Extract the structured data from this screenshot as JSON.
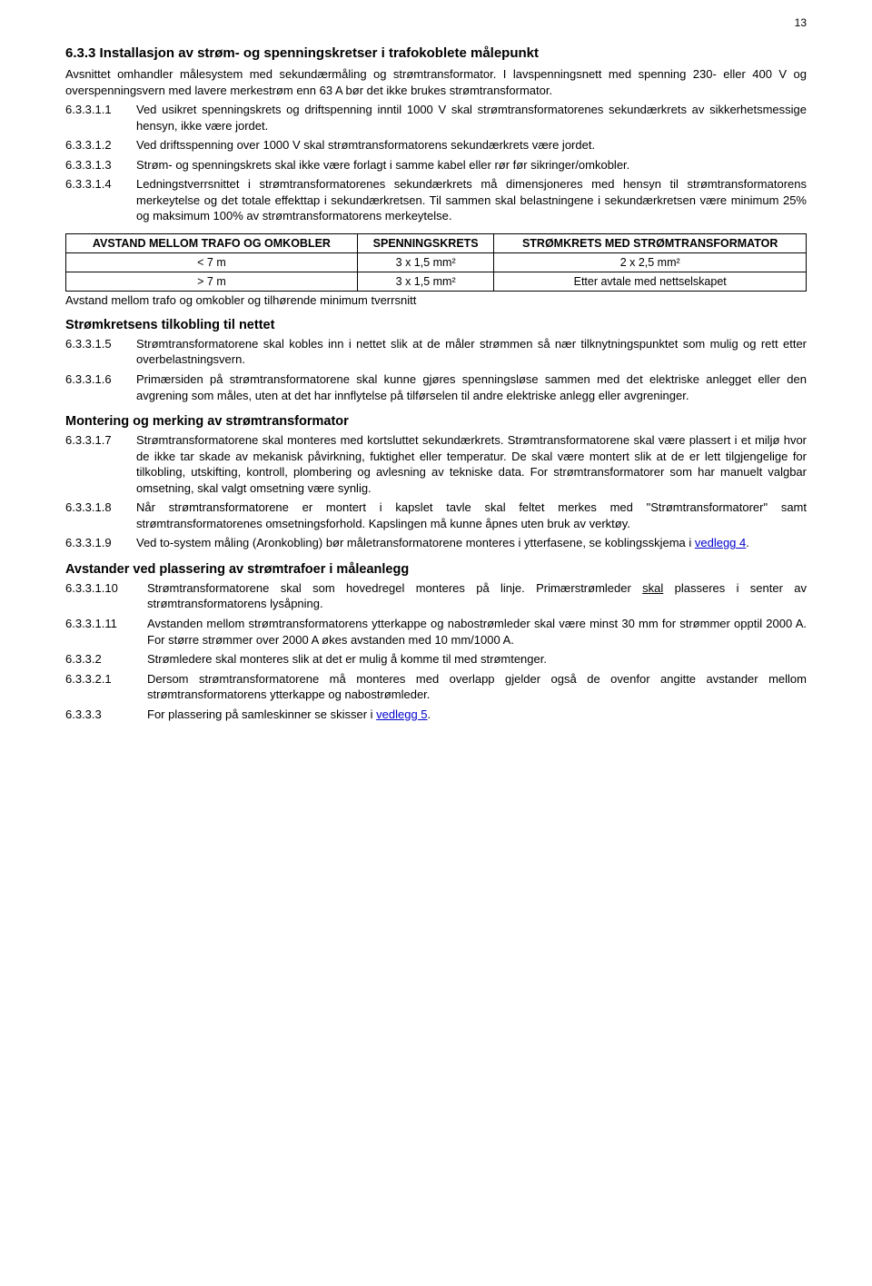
{
  "pageNumber": "13",
  "section": {
    "number": "6.3.3",
    "title": "Installasjon av strøm- og spenningskretser i trafokoblete målepunkt"
  },
  "intro1": "Avsnittet omhandler målesystem med sekundærmåling og strømtransformator. I lavspenningsnett med spenning 230- eller 400 V og overspenningsvern med lavere merkestrøm enn 63 A bør det ikke brukes strømtransformator.",
  "clauses1": [
    {
      "num": "6.3.3.1.1",
      "text": "Ved usikret spenningskrets og driftspenning inntil 1000 V skal strømtransformatorenes sekundærkrets av sikkerhetsmessige hensyn, ikke være jordet."
    },
    {
      "num": "6.3.3.1.2",
      "text": "Ved driftsspenning over 1000 V skal strømtransformatorens sekundærkrets være jordet."
    },
    {
      "num": "6.3.3.1.3",
      "text": "Strøm- og spenningskrets skal ikke være forlagt i samme kabel eller rør før sikringer/omkobler."
    },
    {
      "num": "6.3.3.1.4",
      "text": "Ledningstverrsnittet i strømtransformatorenes sekundærkrets må dimensjoneres med hensyn til strømtransformatorens merkeytelse og det totale effekttap i sekundærkretsen. Til sammen skal belastningene i sekundærkretsen være minimum 25% og maksimum 100% av strømtransformatorens merkeytelse."
    }
  ],
  "table": {
    "columns": [
      "AVSTAND MELLOM TRAFO OG OMKOBLER",
      "SPENNINGSKRETS",
      "STRØMKRETS MED STRØMTRANSFORMATOR"
    ],
    "rows": [
      [
        "< 7 m",
        "3 x 1,5 mm²",
        "2 x 2,5 mm²"
      ],
      [
        "> 7 m",
        "3 x 1,5 mm²",
        "Etter avtale med nettselskapet"
      ]
    ],
    "caption": "Avstand mellom trafo og omkobler og tilhørende minimum tverrsnitt"
  },
  "sub1": {
    "title": "Strømkretsens tilkobling til nettet",
    "clauses": [
      {
        "num": "6.3.3.1.5",
        "text": "Strømtransformatorene skal kobles inn i nettet slik at de måler strømmen så nær tilknytningspunktet som mulig og rett etter overbelastningsvern."
      },
      {
        "num": "6.3.3.1.6",
        "text": "Primærsiden på strømtransformatorene skal kunne gjøres spenningsløse sammen med det elektriske anlegget eller den avgrening som måles, uten at det har innflytelse på tilførselen til andre elektriske anlegg eller avgreninger."
      }
    ]
  },
  "sub2": {
    "title": "Montering  og merking av strømtransformator",
    "clauses": [
      {
        "num": "6.3.3.1.7",
        "text": "Strømtransformatorene skal monteres med kortsluttet sekundærkrets. Strømtransformatorene skal være plassert i et miljø hvor de ikke tar skade av mekanisk påvirkning, fuktighet eller temperatur. De skal være montert slik at de er lett tilgjengelige for tilkobling, utskifting, kontroll, plombering og avlesning av tekniske data. For strømtransformatorer som har manuelt valgbar omsetning, skal valgt omsetning være synlig."
      },
      {
        "num": "6.3.3.1.8",
        "text": "Når strømtransformatorene er montert i kapslet tavle skal feltet merkes med \"Strømtransformatorer\" samt strømtransformatorenes omsetningsforhold. Kapslingen må kunne åpnes uten bruk av verktøy."
      },
      {
        "num": "6.3.3.1.9",
        "textPre": "Ved to-system måling (Aronkobling) bør måletransformatorene monteres i ytterfasene, se koblingsskjema i ",
        "link": "vedlegg 4",
        "textPost": "."
      }
    ]
  },
  "sub3": {
    "title": "Avstander ved plassering av strømtrafoer i måleanlegg",
    "clauses": [
      {
        "num": "6.3.3.1.10",
        "textPre": "Strømtransformatorene skal som hovedregel monteres på linje. Primærstrømleder ",
        "under": "skal",
        "textPost": " plasseres i senter av strømtransformatorens lysåpning."
      },
      {
        "num": "6.3.3.1.11",
        "text": "Avstanden mellom strømtransformatorens ytterkappe og nabostrømleder skal være minst 30 mm for strømmer opptil 2000 A. For større strømmer over 2000 A økes avstanden med 10 mm/1000 A."
      },
      {
        "num": "6.3.3.2",
        "text": "Strømledere skal monteres slik at det er mulig å komme til med strømtenger."
      },
      {
        "num": "6.3.3.2.1",
        "text": "Dersom strømtransformatorene må monteres med overlapp gjelder også de ovenfor angitte avstander mellom strømtransformatorens ytterkappe og nabostrømleder."
      },
      {
        "num": "6.3.3.3",
        "textPre": "For  plassering på samleskinner se skisser i ",
        "link": "vedlegg 5",
        "textPost": "."
      }
    ]
  }
}
